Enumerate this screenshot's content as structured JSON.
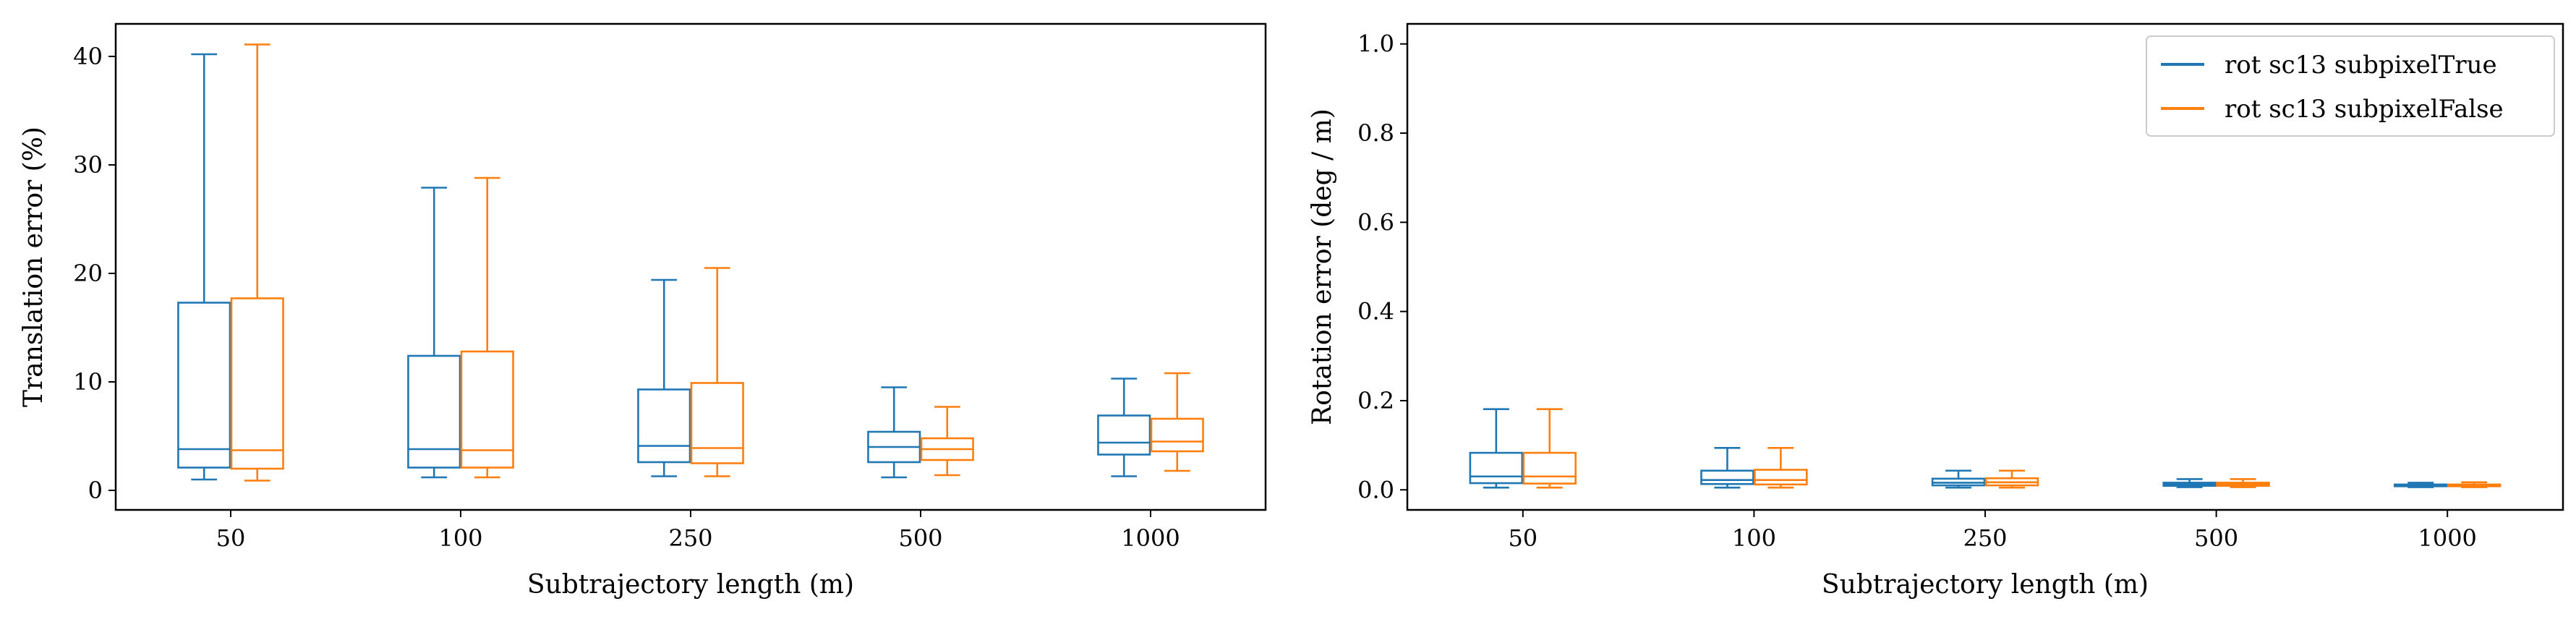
{
  "chart_data": [
    {
      "type": "box",
      "xlabel": "Subtrajectory length (m)",
      "ylabel": "Translation error (%)",
      "categories": [
        "50",
        "100",
        "250",
        "500",
        "1000"
      ],
      "ylim": [
        -1.8,
        43
      ],
      "yticks": [
        0,
        10,
        20,
        30,
        40
      ],
      "grid": false,
      "series": [
        {
          "color": "#1f77b4",
          "boxes": [
            {
              "whisker_low": 1.0,
              "q1": 2.1,
              "median": 3.8,
              "q3": 17.3,
              "whisker_high": 40.2
            },
            {
              "whisker_low": 1.2,
              "q1": 2.1,
              "median": 3.8,
              "q3": 12.4,
              "whisker_high": 27.9
            },
            {
              "whisker_low": 1.3,
              "q1": 2.6,
              "median": 4.1,
              "q3": 9.3,
              "whisker_high": 19.4
            },
            {
              "whisker_low": 1.2,
              "q1": 2.6,
              "median": 4.0,
              "q3": 5.4,
              "whisker_high": 9.5
            },
            {
              "whisker_low": 1.3,
              "q1": 3.3,
              "median": 4.4,
              "q3": 6.9,
              "whisker_high": 10.3
            }
          ]
        },
        {
          "color": "#ff7f0e",
          "boxes": [
            {
              "whisker_low": 0.9,
              "q1": 2.0,
              "median": 3.7,
              "q3": 17.7,
              "whisker_high": 41.1
            },
            {
              "whisker_low": 1.2,
              "q1": 2.1,
              "median": 3.7,
              "q3": 12.8,
              "whisker_high": 28.8
            },
            {
              "whisker_low": 1.3,
              "q1": 2.5,
              "median": 3.9,
              "q3": 9.9,
              "whisker_high": 20.5
            },
            {
              "whisker_low": 1.4,
              "q1": 2.8,
              "median": 3.8,
              "q3": 4.8,
              "whisker_high": 7.7
            },
            {
              "whisker_low": 1.8,
              "q1": 3.6,
              "median": 4.5,
              "q3": 6.6,
              "whisker_high": 10.8
            }
          ]
        }
      ]
    },
    {
      "type": "box",
      "xlabel": "Subtrajectory length (m)",
      "ylabel": "Rotation error (deg / m)",
      "categories": [
        "50",
        "100",
        "250",
        "500",
        "1000"
      ],
      "ylim": [
        -0.045,
        1.045
      ],
      "yticks": [
        0.0,
        0.2,
        0.4,
        0.6,
        0.8,
        1.0
      ],
      "ytick_labels": [
        "0.0",
        "0.2",
        "0.4",
        "0.6",
        "0.8",
        "1.0"
      ],
      "grid": false,
      "legend": {
        "position": "top-right"
      },
      "series": [
        {
          "name": "rot sc13 subpixelTrue",
          "color": "#1f77b4",
          "boxes": [
            {
              "whisker_low": 0.005,
              "q1": 0.015,
              "median": 0.03,
              "q3": 0.083,
              "whisker_high": 0.181
            },
            {
              "whisker_low": 0.005,
              "q1": 0.013,
              "median": 0.022,
              "q3": 0.043,
              "whisker_high": 0.094
            },
            {
              "whisker_low": 0.005,
              "q1": 0.01,
              "median": 0.016,
              "q3": 0.025,
              "whisker_high": 0.043
            },
            {
              "whisker_low": 0.006,
              "q1": 0.009,
              "median": 0.012,
              "q3": 0.016,
              "whisker_high": 0.024
            },
            {
              "whisker_low": 0.006,
              "q1": 0.008,
              "median": 0.01,
              "q3": 0.012,
              "whisker_high": 0.016
            }
          ]
        },
        {
          "name": "rot sc13 subpixelFalse",
          "color": "#ff7f0e",
          "boxes": [
            {
              "whisker_low": 0.005,
              "q1": 0.014,
              "median": 0.03,
              "q3": 0.083,
              "whisker_high": 0.181
            },
            {
              "whisker_low": 0.005,
              "q1": 0.012,
              "median": 0.022,
              "q3": 0.045,
              "whisker_high": 0.094
            },
            {
              "whisker_low": 0.005,
              "q1": 0.01,
              "median": 0.017,
              "q3": 0.026,
              "whisker_high": 0.043
            },
            {
              "whisker_low": 0.006,
              "q1": 0.009,
              "median": 0.012,
              "q3": 0.016,
              "whisker_high": 0.024
            },
            {
              "whisker_low": 0.006,
              "q1": 0.008,
              "median": 0.01,
              "q3": 0.012,
              "whisker_high": 0.017
            }
          ]
        }
      ]
    }
  ]
}
